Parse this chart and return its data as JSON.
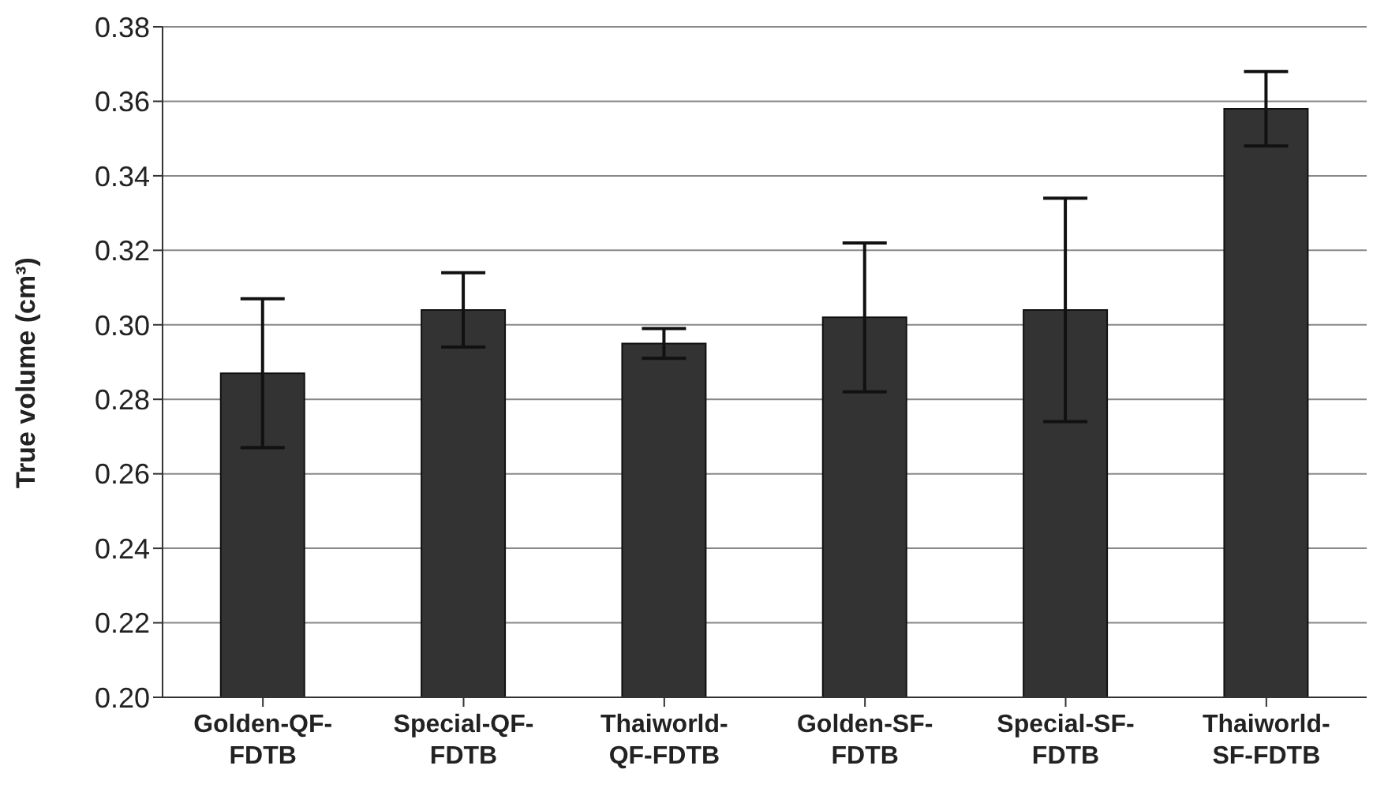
{
  "chart_data": {
    "type": "bar",
    "ylabel": "True volume (cm³)",
    "categories": [
      "Golden-QF-FDTB",
      "Special-QF-FDTB",
      "Thaiworld-QF-FDTB",
      "Golden-SF-FDTB",
      "Special-SF-FDTB",
      "Thaiworld-SF-FDTB"
    ],
    "values": [
      0.287,
      0.304,
      0.295,
      0.302,
      0.304,
      0.358
    ],
    "errors": [
      0.02,
      0.01,
      0.004,
      0.02,
      0.03,
      0.01
    ],
    "color": "#333333",
    "ylim": [
      0.2,
      0.38
    ],
    "yticks": [
      {
        "value": 0.2,
        "label": "0.20"
      },
      0.22,
      0.24,
      0.26,
      0.28,
      {
        "value": 0.3,
        "label": "0.30"
      },
      0.32,
      0.34,
      0.36,
      0.38
    ],
    "grid": "y",
    "legend": false
  }
}
